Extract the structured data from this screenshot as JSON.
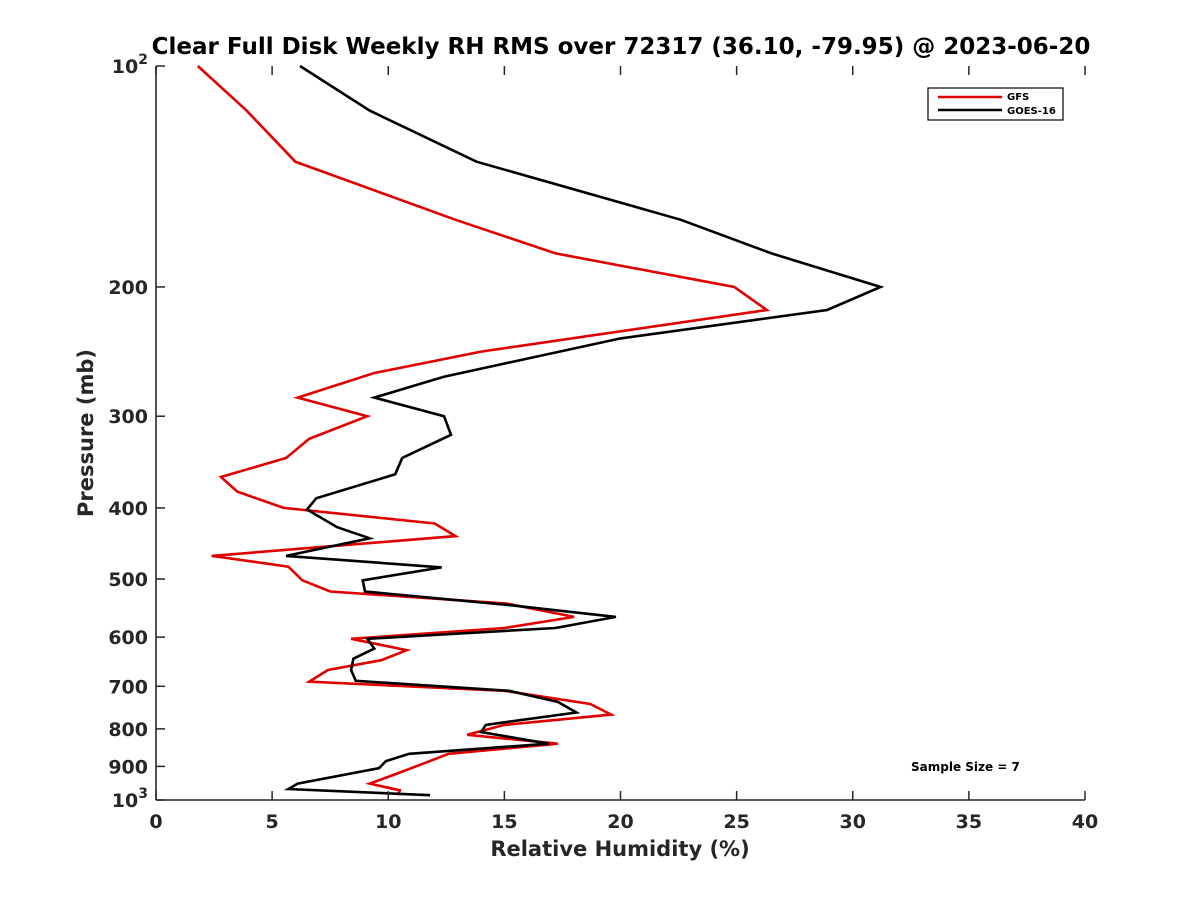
{
  "chart_data": {
    "type": "line",
    "title": "Clear Full Disk Weekly RH RMS over 72317 (36.10, -79.95) @ 2023-06-20",
    "xlabel": "Relative Humidity (%)",
    "ylabel": "Pressure (mb)",
    "xlim": [
      0,
      40
    ],
    "ylim": [
      100,
      1000
    ],
    "y_scale": "log",
    "y_reversed": true,
    "grid": false,
    "legend_position": "top-right",
    "x_ticks": [
      "0",
      "5",
      "10",
      "15",
      "20",
      "25",
      "30",
      "35",
      "40"
    ],
    "y_ticks": [
      {
        "value": 100,
        "base": "10",
        "exp": "2"
      },
      {
        "value": 200,
        "label": "200"
      },
      {
        "value": 300,
        "label": "300"
      },
      {
        "value": 400,
        "label": "400"
      },
      {
        "value": 500,
        "label": "500"
      },
      {
        "value": 600,
        "label": "600"
      },
      {
        "value": 700,
        "label": "700"
      },
      {
        "value": 800,
        "label": "800"
      },
      {
        "value": 900,
        "label": "900"
      },
      {
        "value": 1000,
        "base": "10",
        "exp": "3"
      }
    ],
    "annotation": "Sample Size = 7",
    "series": [
      {
        "name": "GFS",
        "color": "#e00000",
        "points": [
          {
            "x": 1.8,
            "p": 100
          },
          {
            "x": 3.9,
            "p": 115
          },
          {
            "x": 6.0,
            "p": 135
          },
          {
            "x": 12.9,
            "p": 162
          },
          {
            "x": 17.2,
            "p": 180
          },
          {
            "x": 24.9,
            "p": 200
          },
          {
            "x": 26.3,
            "p": 215
          },
          {
            "x": 14.0,
            "p": 245
          },
          {
            "x": 9.4,
            "p": 262
          },
          {
            "x": 6.1,
            "p": 283
          },
          {
            "x": 9.1,
            "p": 300
          },
          {
            "x": 6.6,
            "p": 322
          },
          {
            "x": 5.6,
            "p": 342
          },
          {
            "x": 2.8,
            "p": 363
          },
          {
            "x": 3.5,
            "p": 380
          },
          {
            "x": 5.5,
            "p": 400
          },
          {
            "x": 12.0,
            "p": 420
          },
          {
            "x": 12.9,
            "p": 437
          },
          {
            "x": 2.4,
            "p": 465
          },
          {
            "x": 5.7,
            "p": 481
          },
          {
            "x": 6.3,
            "p": 502
          },
          {
            "x": 7.5,
            "p": 520
          },
          {
            "x": 15.1,
            "p": 540
          },
          {
            "x": 18.0,
            "p": 563
          },
          {
            "x": 15.0,
            "p": 583
          },
          {
            "x": 8.4,
            "p": 603
          },
          {
            "x": 10.8,
            "p": 625
          },
          {
            "x": 9.7,
            "p": 645
          },
          {
            "x": 7.4,
            "p": 665
          },
          {
            "x": 6.6,
            "p": 690
          },
          {
            "x": 15.0,
            "p": 710
          },
          {
            "x": 18.7,
            "p": 740
          },
          {
            "x": 19.6,
            "p": 765
          },
          {
            "x": 15.0,
            "p": 790
          },
          {
            "x": 13.4,
            "p": 815
          },
          {
            "x": 17.3,
            "p": 838
          },
          {
            "x": 12.6,
            "p": 865
          },
          {
            "x": 11.4,
            "p": 895
          },
          {
            "x": 10.2,
            "p": 925
          },
          {
            "x": 9.2,
            "p": 950
          },
          {
            "x": 10.5,
            "p": 970
          },
          {
            "x": 10.4,
            "p": 985
          }
        ]
      },
      {
        "name": "GOES-16",
        "color": "#000000",
        "points": [
          {
            "x": 6.2,
            "p": 100
          },
          {
            "x": 9.2,
            "p": 115
          },
          {
            "x": 13.8,
            "p": 135
          },
          {
            "x": 22.6,
            "p": 162
          },
          {
            "x": 26.5,
            "p": 180
          },
          {
            "x": 31.2,
            "p": 200
          },
          {
            "x": 28.9,
            "p": 215
          },
          {
            "x": 20.0,
            "p": 235
          },
          {
            "x": 12.4,
            "p": 265
          },
          {
            "x": 9.4,
            "p": 283
          },
          {
            "x": 12.4,
            "p": 300
          },
          {
            "x": 12.7,
            "p": 318
          },
          {
            "x": 10.6,
            "p": 342
          },
          {
            "x": 10.3,
            "p": 360
          },
          {
            "x": 6.9,
            "p": 388
          },
          {
            "x": 6.5,
            "p": 402
          },
          {
            "x": 7.8,
            "p": 425
          },
          {
            "x": 9.2,
            "p": 440
          },
          {
            "x": 5.6,
            "p": 465
          },
          {
            "x": 12.3,
            "p": 482
          },
          {
            "x": 8.9,
            "p": 502
          },
          {
            "x": 9.0,
            "p": 520
          },
          {
            "x": 15.3,
            "p": 543
          },
          {
            "x": 19.8,
            "p": 563
          },
          {
            "x": 17.2,
            "p": 583
          },
          {
            "x": 9.1,
            "p": 603
          },
          {
            "x": 9.4,
            "p": 622
          },
          {
            "x": 8.5,
            "p": 642
          },
          {
            "x": 8.4,
            "p": 665
          },
          {
            "x": 8.6,
            "p": 688
          },
          {
            "x": 15.2,
            "p": 710
          },
          {
            "x": 17.3,
            "p": 735
          },
          {
            "x": 18.1,
            "p": 760
          },
          {
            "x": 14.2,
            "p": 790
          },
          {
            "x": 14.0,
            "p": 808
          },
          {
            "x": 16.9,
            "p": 838
          },
          {
            "x": 10.9,
            "p": 865
          },
          {
            "x": 9.9,
            "p": 885
          },
          {
            "x": 9.6,
            "p": 905
          },
          {
            "x": 6.1,
            "p": 950
          },
          {
            "x": 5.7,
            "p": 966
          },
          {
            "x": 11.8,
            "p": 985
          }
        ]
      }
    ]
  }
}
